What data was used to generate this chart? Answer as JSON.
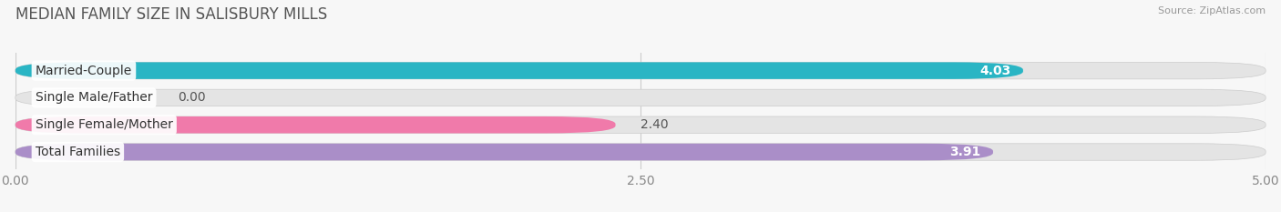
{
  "title": "MEDIAN FAMILY SIZE IN SALISBURY MILLS",
  "source": "Source: ZipAtlas.com",
  "categories": [
    "Married-Couple",
    "Single Male/Father",
    "Single Female/Mother",
    "Total Families"
  ],
  "values": [
    4.03,
    0.0,
    2.4,
    3.91
  ],
  "bar_colors": [
    "#2ab5c4",
    "#a8b8ee",
    "#f07aaa",
    "#aa8ec8"
  ],
  "value_inside": [
    true,
    false,
    false,
    true
  ],
  "xlim": [
    0,
    5.0
  ],
  "xticks": [
    0.0,
    2.5,
    5.0
  ],
  "xtick_labels": [
    "0.00",
    "2.50",
    "5.00"
  ],
  "bar_height": 0.62,
  "background_color": "#f7f7f7",
  "bar_bg_color": "#e4e4e4",
  "label_fontsize": 10,
  "title_fontsize": 12,
  "value_fontsize": 10,
  "title_color": "#555555",
  "source_color": "#999999"
}
